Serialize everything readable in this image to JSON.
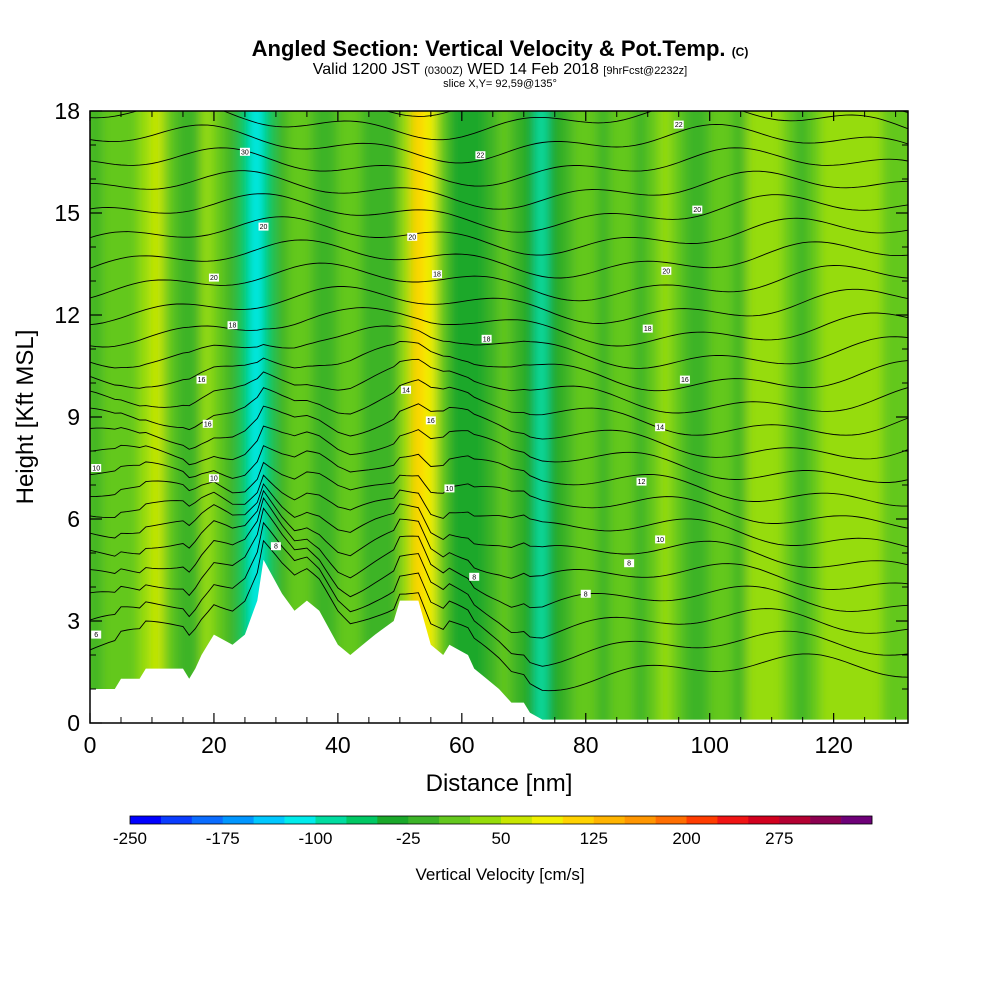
{
  "title": {
    "main": "Angled Section: Vertical Velocity & Pot.Temp.",
    "main_tag": "(C)",
    "valid_prefix": "Valid 1200 JST",
    "valid_utc": "(0300Z)",
    "valid_date": "WED 14 Feb 2018",
    "valid_fcst": "[9hrFcst@2232z]",
    "slice": "slice X,Y= 92,59@135°"
  },
  "chart_data": {
    "type": "heatmap",
    "xlabel": "Distance [nm]",
    "ylabel": "Height [Kft MSL]",
    "xlim": [
      0,
      132
    ],
    "ylim": [
      0,
      18
    ],
    "x_ticks": [
      0,
      20,
      40,
      60,
      80,
      100,
      120
    ],
    "y_ticks": [
      0,
      3,
      6,
      9,
      12,
      15,
      18
    ],
    "colorbar": {
      "label": "Vertical Velocity [cm/s]",
      "min": -250,
      "max": 325,
      "step": 25,
      "tick_labels": [
        "-250",
        "-175",
        "-100",
        "-25",
        "50",
        "125",
        "200",
        "275"
      ],
      "colors": [
        "#0000ff",
        "#0a3cff",
        "#0a6cff",
        "#0096ff",
        "#00c8ff",
        "#00ecec",
        "#00dca0",
        "#00c864",
        "#1aa82a",
        "#3cb428",
        "#64c81e",
        "#96dc0a",
        "#c8e600",
        "#f0f000",
        "#ffd200",
        "#ffb400",
        "#ff9600",
        "#ff6e00",
        "#ff3c00",
        "#f01414",
        "#d2001e",
        "#b40032",
        "#8c0050",
        "#6e0078"
      ]
    },
    "velocity_columns_cm_s": [
      {
        "x": 1,
        "w": -10
      },
      {
        "x": 3,
        "w": 5
      },
      {
        "x": 5,
        "w": 20
      },
      {
        "x": 7,
        "w": 10
      },
      {
        "x": 9,
        "w": 35
      },
      {
        "x": 11,
        "w": 55
      },
      {
        "x": 13,
        "w": 20
      },
      {
        "x": 15,
        "w": -20
      },
      {
        "x": 17,
        "w": -10
      },
      {
        "x": 19,
        "w": 35
      },
      {
        "x": 21,
        "w": 10
      },
      {
        "x": 23,
        "w": -25
      },
      {
        "x": 25,
        "w": -70
      },
      {
        "x": 27,
        "w": -105
      },
      {
        "x": 29,
        "w": -60
      },
      {
        "x": 31,
        "w": -10
      },
      {
        "x": 33,
        "w": 20
      },
      {
        "x": 35,
        "w": 5
      },
      {
        "x": 37,
        "w": -15
      },
      {
        "x": 39,
        "w": -5
      },
      {
        "x": 41,
        "w": 15
      },
      {
        "x": 43,
        "w": 20
      },
      {
        "x": 45,
        "w": -5
      },
      {
        "x": 47,
        "w": -25
      },
      {
        "x": 49,
        "w": -10
      },
      {
        "x": 51,
        "w": 45
      },
      {
        "x": 53,
        "w": 120
      },
      {
        "x": 55,
        "w": 75
      },
      {
        "x": 57,
        "w": 5
      },
      {
        "x": 59,
        "w": -30
      },
      {
        "x": 61,
        "w": -40
      },
      {
        "x": 63,
        "w": -35
      },
      {
        "x": 65,
        "w": -10
      },
      {
        "x": 67,
        "w": 15
      },
      {
        "x": 69,
        "w": -10
      },
      {
        "x": 71,
        "w": -45
      },
      {
        "x": 73,
        "w": -80
      },
      {
        "x": 75,
        "w": -50
      },
      {
        "x": 77,
        "w": -20
      },
      {
        "x": 79,
        "w": 10
      },
      {
        "x": 81,
        "w": 20
      },
      {
        "x": 83,
        "w": -5
      },
      {
        "x": 85,
        "w": 15
      },
      {
        "x": 87,
        "w": 5
      },
      {
        "x": 89,
        "w": -15
      },
      {
        "x": 91,
        "w": 10
      },
      {
        "x": 93,
        "w": 30
      },
      {
        "x": 95,
        "w": 5
      },
      {
        "x": 97,
        "w": -10
      },
      {
        "x": 99,
        "w": -20
      },
      {
        "x": 101,
        "w": 15
      },
      {
        "x": 103,
        "w": 5
      },
      {
        "x": 105,
        "w": -10
      },
      {
        "x": 107,
        "w": 25
      },
      {
        "x": 109,
        "w": 45
      },
      {
        "x": 111,
        "w": 35
      },
      {
        "x": 113,
        "w": 10
      },
      {
        "x": 115,
        "w": -10
      },
      {
        "x": 117,
        "w": 10
      },
      {
        "x": 119,
        "w": 25
      },
      {
        "x": 121,
        "w": 30
      },
      {
        "x": 123,
        "w": 40
      },
      {
        "x": 125,
        "w": 45
      },
      {
        "x": 127,
        "w": 40
      },
      {
        "x": 129,
        "w": 20
      },
      {
        "x": 131,
        "w": 5
      }
    ],
    "terrain_kft": [
      [
        0,
        1
      ],
      [
        4,
        1
      ],
      [
        5,
        1.3
      ],
      [
        8,
        1.3
      ],
      [
        9,
        1.6
      ],
      [
        15,
        1.6
      ],
      [
        16,
        1.3
      ],
      [
        17,
        1.6
      ],
      [
        18,
        2
      ],
      [
        19,
        2.3
      ],
      [
        20,
        2.6
      ],
      [
        23,
        2.3
      ],
      [
        25,
        2.6
      ],
      [
        27,
        3.6
      ],
      [
        28,
        4.8
      ],
      [
        31,
        3.8
      ],
      [
        33,
        3.3
      ],
      [
        35,
        3.6
      ],
      [
        37,
        3.3
      ],
      [
        40,
        2.3
      ],
      [
        42,
        2
      ],
      [
        44,
        2.3
      ],
      [
        46,
        2.6
      ],
      [
        49,
        3
      ],
      [
        50,
        3.6
      ],
      [
        53,
        3.6
      ],
      [
        55,
        2.3
      ],
      [
        57,
        2
      ],
      [
        58,
        2.3
      ],
      [
        61,
        2
      ],
      [
        62,
        1.6
      ],
      [
        64,
        1.3
      ],
      [
        66,
        1
      ],
      [
        68,
        0.6
      ],
      [
        70,
        0.6
      ],
      [
        71,
        0.3
      ],
      [
        73,
        0.1
      ],
      [
        132,
        0.1
      ]
    ],
    "theta_contour_labels": [
      {
        "text": "30",
        "x": 25,
        "y": 16.8
      },
      {
        "text": "22",
        "x": 63,
        "y": 16.7
      },
      {
        "text": "22",
        "x": 95,
        "y": 17.6
      },
      {
        "text": "20",
        "x": 28,
        "y": 14.6
      },
      {
        "text": "20",
        "x": 52,
        "y": 14.3
      },
      {
        "text": "20",
        "x": 98,
        "y": 15.1
      },
      {
        "text": "20",
        "x": 20,
        "y": 13.1
      },
      {
        "text": "18",
        "x": 56,
        "y": 13.2
      },
      {
        "text": "20",
        "x": 93,
        "y": 13.3
      },
      {
        "text": "18",
        "x": 23,
        "y": 11.7
      },
      {
        "text": "18",
        "x": 64,
        "y": 11.3
      },
      {
        "text": "18",
        "x": 90,
        "y": 11.6
      },
      {
        "text": "16",
        "x": 18,
        "y": 10.1
      },
      {
        "text": "16",
        "x": 96,
        "y": 10.1
      },
      {
        "text": "14",
        "x": 51,
        "y": 9.8
      },
      {
        "text": "16",
        "x": 19,
        "y": 8.8
      },
      {
        "text": "16",
        "x": 55,
        "y": 8.9
      },
      {
        "text": "14",
        "x": 92,
        "y": 8.7
      },
      {
        "text": "10",
        "x": 1,
        "y": 7.5
      },
      {
        "text": "10",
        "x": 20,
        "y": 7.2
      },
      {
        "text": "10",
        "x": 58,
        "y": 6.9
      },
      {
        "text": "12",
        "x": 89,
        "y": 7.1
      },
      {
        "text": "10",
        "x": 92,
        "y": 5.4
      },
      {
        "text": "8",
        "x": 30,
        "y": 5.2
      },
      {
        "text": "8",
        "x": 62,
        "y": 4.3
      },
      {
        "text": "8",
        "x": 87,
        "y": 4.7
      },
      {
        "text": "8",
        "x": 80,
        "y": 3.8
      },
      {
        "text": "6",
        "x": 1,
        "y": 2.6
      }
    ]
  }
}
